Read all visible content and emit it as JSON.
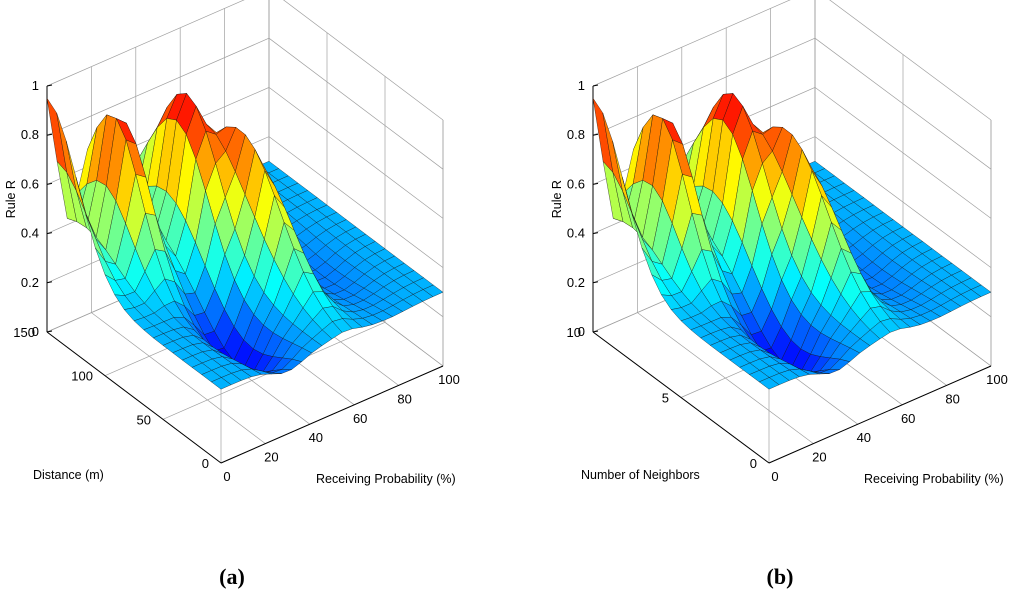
{
  "chart_data": [
    {
      "type": "surface",
      "caption": "(a)",
      "zlabel": "Rule R",
      "ylabel": "Distance (m)",
      "xlabel": "Receiving Probability (%)",
      "z_ticks": [
        "0",
        "0.2",
        "0.4",
        "0.6",
        "0.8",
        "1"
      ],
      "y_ticks": [
        "0",
        "50",
        "100",
        "150"
      ],
      "x_ticks": [
        "0",
        "20",
        "40",
        "60",
        "80",
        "100"
      ],
      "x_range": [
        0,
        100
      ],
      "y_range": [
        0,
        150
      ],
      "z_range": [
        0,
        1
      ],
      "peaks": [
        {
          "receiving_probability": 0,
          "distance": 150,
          "rule_r": 0.97
        },
        {
          "receiving_probability": 20,
          "distance": 130,
          "rule_r": 0.95
        },
        {
          "receiving_probability": 45,
          "distance": 120,
          "rule_r": 0.95
        },
        {
          "receiving_probability": 55,
          "distance": 90,
          "rule_r": 0.85
        }
      ]
    },
    {
      "type": "surface",
      "caption": "(b)",
      "zlabel": "Rule R",
      "ylabel": "Number of Neighbors",
      "xlabel": "Receiving Probability (%)",
      "z_ticks": [
        "0",
        "0.2",
        "0.4",
        "0.6",
        "0.8",
        "1"
      ],
      "y_ticks": [
        "0",
        "5",
        "10"
      ],
      "x_ticks": [
        "0",
        "20",
        "40",
        "60",
        "80",
        "100"
      ],
      "x_range": [
        0,
        100
      ],
      "y_range": [
        0,
        10
      ],
      "z_range": [
        0,
        1
      ],
      "peaks": [
        {
          "receiving_probability": 0,
          "neighbors": 10,
          "rule_r": 0.97
        },
        {
          "receiving_probability": 20,
          "neighbors": 9,
          "rule_r": 0.95
        },
        {
          "receiving_probability": 45,
          "neighbors": 8,
          "rule_r": 0.95
        },
        {
          "receiving_probability": 55,
          "neighbors": 6,
          "rule_r": 0.85
        }
      ]
    }
  ]
}
